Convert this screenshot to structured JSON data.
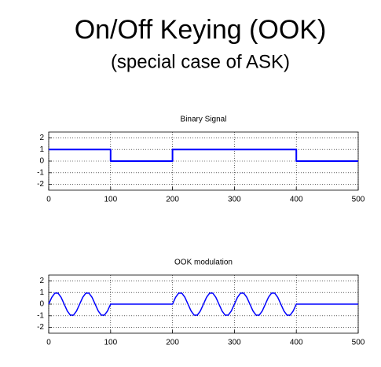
{
  "title": "On/Off Keying (OOK)",
  "subtitle": "(special case of ASK)",
  "chart_data": [
    {
      "type": "line",
      "title": "Binary Signal",
      "x": [
        0,
        100,
        100,
        200,
        200,
        400,
        400,
        500
      ],
      "values": [
        1,
        1,
        0,
        0,
        1,
        1,
        0,
        0
      ],
      "color": "#0000ff",
      "xlim": [
        0,
        500
      ],
      "ylim": [
        -2.5,
        2.5
      ],
      "xticks": [
        0,
        100,
        200,
        300,
        400,
        500
      ],
      "yticks": [
        -2,
        -1,
        0,
        1,
        2
      ],
      "grid": true
    },
    {
      "type": "line",
      "title": "OOK modulation",
      "x": [
        0,
        5,
        10,
        15,
        20,
        25,
        30,
        35,
        40,
        45,
        50,
        55,
        60,
        65,
        70,
        75,
        80,
        85,
        90,
        95,
        100,
        105,
        110,
        115,
        120,
        125,
        130,
        135,
        140,
        145,
        150,
        155,
        160,
        165,
        170,
        175,
        180,
        185,
        190,
        195,
        200,
        205,
        210,
        215,
        220,
        225,
        230,
        235,
        240,
        245,
        250,
        255,
        260,
        265,
        270,
        275,
        280,
        285,
        290,
        295,
        300,
        305,
        310,
        315,
        320,
        325,
        330,
        335,
        340,
        345,
        350,
        355,
        360,
        365,
        370,
        375,
        380,
        385,
        390,
        395,
        400,
        405,
        410,
        415,
        420,
        425,
        430,
        435,
        440,
        445,
        450,
        455,
        460,
        465,
        470,
        475,
        480,
        485,
        490,
        495,
        500
      ],
      "values": [
        0,
        0.59,
        0.95,
        0.95,
        0.59,
        0,
        -0.59,
        -0.95,
        -0.95,
        -0.59,
        0,
        0.59,
        0.95,
        0.95,
        0.59,
        0,
        -0.59,
        -0.95,
        -0.95,
        -0.59,
        0,
        0,
        0,
        0,
        0,
        0,
        0,
        0,
        0,
        0,
        0,
        0,
        0,
        0,
        0,
        0,
        0,
        0,
        0,
        0,
        0,
        0.59,
        0.95,
        0.95,
        0.59,
        0,
        -0.59,
        -0.95,
        -0.95,
        -0.59,
        0,
        0.59,
        0.95,
        0.95,
        0.59,
        0,
        -0.59,
        -0.95,
        -0.95,
        -0.59,
        0,
        0.59,
        0.95,
        0.95,
        0.59,
        0,
        -0.59,
        -0.95,
        -0.95,
        -0.59,
        0,
        0.59,
        0.95,
        0.95,
        0.59,
        0,
        -0.59,
        -0.95,
        -0.95,
        -0.59,
        0,
        0,
        0,
        0,
        0,
        0,
        0,
        0,
        0,
        0,
        0,
        0,
        0,
        0,
        0,
        0,
        0,
        0,
        0,
        0,
        0
      ],
      "color": "#0000ff",
      "xlim": [
        0,
        500
      ],
      "ylim": [
        -2.5,
        2.5
      ],
      "xticks": [
        0,
        100,
        200,
        300,
        400,
        500
      ],
      "yticks": [
        -2,
        -1,
        0,
        1,
        2
      ],
      "grid": true
    }
  ]
}
